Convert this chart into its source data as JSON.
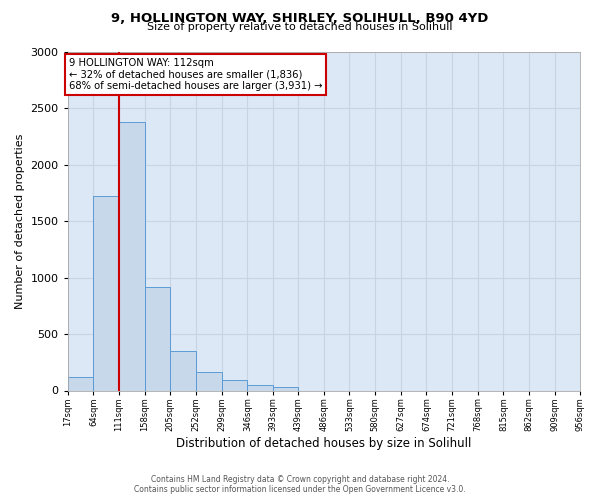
{
  "title": "9, HOLLINGTON WAY, SHIRLEY, SOLIHULL, B90 4YD",
  "subtitle": "Size of property relative to detached houses in Solihull",
  "xlabel": "Distribution of detached houses by size in Solihull",
  "ylabel": "Number of detached properties",
  "bar_edges": [
    17,
    64,
    111,
    158,
    205,
    252,
    299,
    346,
    393,
    439,
    486,
    533,
    580,
    627,
    674,
    721,
    768,
    815,
    862,
    909,
    956
  ],
  "bar_heights": [
    120,
    1720,
    2380,
    920,
    350,
    160,
    90,
    50,
    30,
    0,
    0,
    0,
    0,
    0,
    0,
    0,
    0,
    0,
    0,
    0
  ],
  "property_line_x": 111,
  "bar_facecolor": "#c8d8eb",
  "bar_edgecolor": "#5b9bd5",
  "property_line_color": "#cc0000",
  "annotation_text": "9 HOLLINGTON WAY: 112sqm\n← 32% of detached houses are smaller (1,836)\n68% of semi-detached houses are larger (3,931) →",
  "annotation_box_edgecolor": "#cc0000",
  "grid_color": "#c8d4e4",
  "plot_background": "#dce8f5",
  "ylim": [
    0,
    3000
  ],
  "tick_labels": [
    "17sqm",
    "64sqm",
    "111sqm",
    "158sqm",
    "205sqm",
    "252sqm",
    "299sqm",
    "346sqm",
    "393sqm",
    "439sqm",
    "486sqm",
    "533sqm",
    "580sqm",
    "627sqm",
    "674sqm",
    "721sqm",
    "768sqm",
    "815sqm",
    "862sqm",
    "909sqm",
    "956sqm"
  ],
  "footer_line1": "Contains HM Land Registry data © Crown copyright and database right 2024.",
  "footer_line2": "Contains public sector information licensed under the Open Government Licence v3.0."
}
